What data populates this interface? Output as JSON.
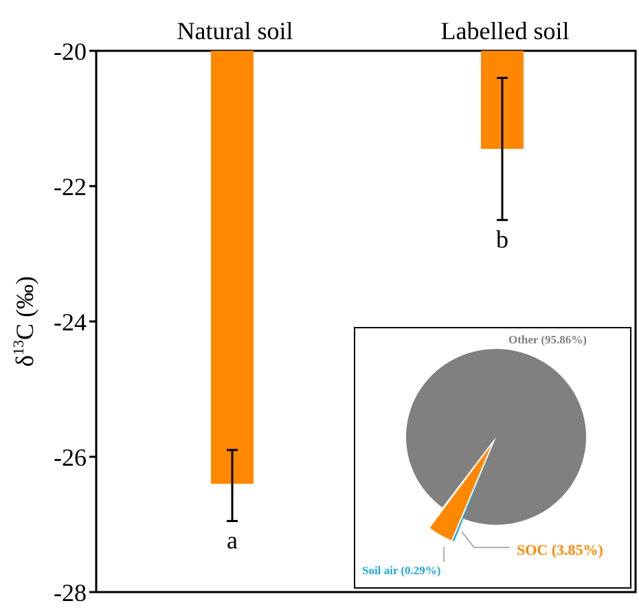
{
  "chart_data": [
    {
      "type": "bar",
      "ylabel_prefix": "δ",
      "ylabel_superscript": "13",
      "ylabel_suffix": "C (‰)",
      "categories": [
        "Natural soil",
        "Labelled soil"
      ],
      "values": [
        -26.4,
        -21.45
      ],
      "error_low": [
        -26.95,
        -22.5
      ],
      "error_high": [
        -25.9,
        -20.4
      ],
      "significance_letters": [
        "a",
        "b"
      ],
      "ylim": [
        -28,
        -20
      ],
      "yticks": [
        -20,
        -22,
        -24,
        -26,
        -28
      ],
      "bar_color": "#ff8800",
      "grid": false
    },
    {
      "type": "pie",
      "slices": [
        {
          "label": "Other (95.86%)",
          "value": 95.86,
          "color": "#808080",
          "label_color": "#808080"
        },
        {
          "label": "SOC (3.85%)",
          "value": 3.85,
          "color": "#ff8800",
          "label_color": "#ff8800"
        },
        {
          "label": "Soil air (0.29%)",
          "value": 0.29,
          "color": "#1ea8e0",
          "label_color": "#1ea8e0"
        }
      ]
    }
  ]
}
